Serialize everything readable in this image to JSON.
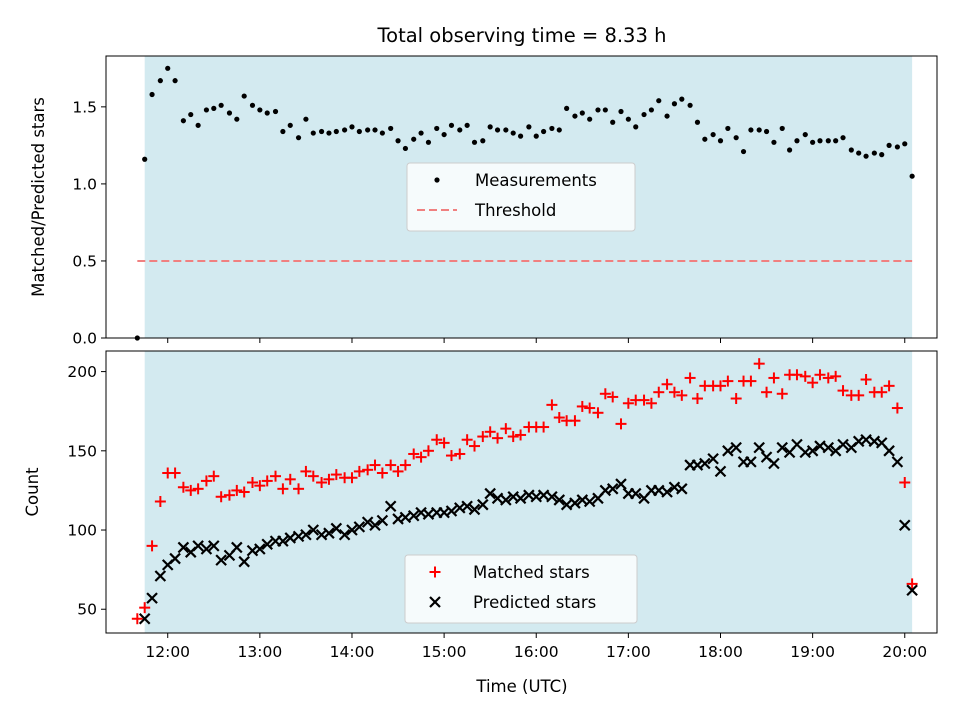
{
  "chart_data": {
    "title": "Total observing time = 8.33 h",
    "xlabel": "Time (UTC)",
    "xticks": [
      {
        "value": 12,
        "label": "12:00"
      },
      {
        "value": 13,
        "label": "13:00"
      },
      {
        "value": 14,
        "label": "14:00"
      },
      {
        "value": 15,
        "label": "15:00"
      },
      {
        "value": 16,
        "label": "16:00"
      },
      {
        "value": 17,
        "label": "17:00"
      },
      {
        "value": 18,
        "label": "18:00"
      },
      {
        "value": 19,
        "label": "19:00"
      },
      {
        "value": 20,
        "label": "20:00"
      }
    ],
    "xlim": [
      11.33,
      20.35
    ],
    "shaded_span": {
      "x": [
        11.75,
        20.08
      ],
      "color": "#d3eaf0"
    },
    "panels": [
      {
        "type": "scatter",
        "ylabel": "Matched/Predicted stars",
        "ylim": [
          0,
          1.83
        ],
        "yticks": [
          {
            "value": 0,
            "label": "0.0"
          },
          {
            "value": 0.5,
            "label": "0.5"
          },
          {
            "value": 1.0,
            "label": "1.0"
          },
          {
            "value": 1.5,
            "label": "1.5"
          }
        ],
        "threshold": {
          "name": "Threshold",
          "value": 0.5,
          "x": [
            11.67,
            20.08
          ],
          "color": "#f08080"
        },
        "series": [
          {
            "name": "Measurements",
            "marker": "dot",
            "color": "#000000",
            "x": [
              11.67,
              11.75,
              11.83,
              11.92,
              12.0,
              12.08,
              12.17,
              12.25,
              12.33,
              12.42,
              12.5,
              12.58,
              12.67,
              12.75,
              12.83,
              12.92,
              13.0,
              13.08,
              13.17,
              13.25,
              13.33,
              13.42,
              13.5,
              13.58,
              13.67,
              13.75,
              13.83,
              13.92,
              14.0,
              14.08,
              14.17,
              14.25,
              14.33,
              14.42,
              14.5,
              14.58,
              14.67,
              14.75,
              14.83,
              14.92,
              15.0,
              15.08,
              15.17,
              15.25,
              15.33,
              15.42,
              15.5,
              15.58,
              15.67,
              15.75,
              15.83,
              15.92,
              16.0,
              16.08,
              16.17,
              16.25,
              16.33,
              16.42,
              16.5,
              16.58,
              16.67,
              16.75,
              16.83,
              16.92,
              17.0,
              17.08,
              17.17,
              17.25,
              17.33,
              17.42,
              17.5,
              17.58,
              17.67,
              17.75,
              17.83,
              17.92,
              18.0,
              18.08,
              18.17,
              18.25,
              18.33,
              18.42,
              18.5,
              18.58,
              18.67,
              18.75,
              18.83,
              18.92,
              19.0,
              19.08,
              19.17,
              19.25,
              19.33,
              19.42,
              19.5,
              19.58,
              19.67,
              19.75,
              19.83,
              19.92,
              20.0,
              20.08
            ],
            "y": [
              0.0,
              1.16,
              1.58,
              1.67,
              1.75,
              1.67,
              1.41,
              1.45,
              1.38,
              1.48,
              1.49,
              1.51,
              1.46,
              1.42,
              1.57,
              1.51,
              1.48,
              1.46,
              1.47,
              1.34,
              1.38,
              1.3,
              1.42,
              1.33,
              1.34,
              1.33,
              1.34,
              1.35,
              1.37,
              1.34,
              1.35,
              1.35,
              1.33,
              1.36,
              1.28,
              1.23,
              1.29,
              1.33,
              1.27,
              1.36,
              1.32,
              1.38,
              1.35,
              1.38,
              1.27,
              1.28,
              1.37,
              1.35,
              1.35,
              1.33,
              1.31,
              1.37,
              1.31,
              1.34,
              1.36,
              1.35,
              1.49,
              1.44,
              1.46,
              1.42,
              1.48,
              1.48,
              1.4,
              1.47,
              1.42,
              1.37,
              1.45,
              1.48,
              1.54,
              1.44,
              1.52,
              1.55,
              1.51,
              1.4,
              1.29,
              1.32,
              1.28,
              1.36,
              1.3,
              1.21,
              1.35,
              1.35,
              1.34,
              1.27,
              1.36,
              1.22,
              1.28,
              1.32,
              1.27,
              1.28,
              1.28,
              1.28,
              1.3,
              1.22,
              1.2,
              1.18,
              1.2,
              1.19,
              1.25,
              1.24,
              1.26,
              1.05
            ]
          }
        ],
        "legend": {
          "placement": "center",
          "entries": [
            "Measurements",
            "Threshold"
          ]
        }
      },
      {
        "type": "scatter",
        "ylabel": "Count",
        "ylim": [
          35,
          213
        ],
        "yticks": [
          {
            "value": 50,
            "label": "50"
          },
          {
            "value": 100,
            "label": "100"
          },
          {
            "value": 150,
            "label": "150"
          },
          {
            "value": 200,
            "label": "200"
          }
        ],
        "series": [
          {
            "name": "Matched stars",
            "marker": "plus",
            "color": "#ff0000",
            "x": [
              11.67,
              11.75,
              11.83,
              11.92,
              12.0,
              12.08,
              12.17,
              12.25,
              12.33,
              12.42,
              12.5,
              12.58,
              12.67,
              12.75,
              12.83,
              12.92,
              13.0,
              13.08,
              13.17,
              13.25,
              13.33,
              13.42,
              13.5,
              13.58,
              13.67,
              13.75,
              13.83,
              13.92,
              14.0,
              14.08,
              14.17,
              14.25,
              14.33,
              14.42,
              14.5,
              14.58,
              14.67,
              14.75,
              14.83,
              14.92,
              15.0,
              15.08,
              15.17,
              15.25,
              15.33,
              15.42,
              15.5,
              15.58,
              15.67,
              15.75,
              15.83,
              15.92,
              16.0,
              16.08,
              16.17,
              16.25,
              16.33,
              16.42,
              16.5,
              16.58,
              16.67,
              16.75,
              16.83,
              16.92,
              17.0,
              17.08,
              17.17,
              17.25,
              17.33,
              17.42,
              17.5,
              17.58,
              17.67,
              17.75,
              17.83,
              17.92,
              18.0,
              18.08,
              18.17,
              18.25,
              18.33,
              18.42,
              18.5,
              18.58,
              18.67,
              18.75,
              18.83,
              18.92,
              19.0,
              19.08,
              19.17,
              19.25,
              19.33,
              19.42,
              19.5,
              19.58,
              19.67,
              19.75,
              19.83,
              19.92,
              20.0,
              20.08
            ],
            "y": [
              44,
              51,
              90,
              118,
              136,
              136,
              127,
              125,
              126,
              131,
              134,
              121,
              122,
              125,
              124,
              130,
              128,
              131,
              134,
              126,
              132,
              126,
              137,
              134,
              130,
              132,
              135,
              133,
              133,
              137,
              138,
              141,
              136,
              141,
              137,
              141,
              148,
              146,
              150,
              157,
              155,
              147,
              148,
              157,
              153,
              159,
              162,
              158,
              164,
              159,
              160,
              165,
              165,
              165,
              179,
              171,
              169,
              169,
              178,
              177,
              174,
              186,
              184,
              167,
              180,
              182,
              182,
              180,
              187,
              192,
              187,
              185,
              196,
              183,
              191,
              191,
              191,
              194,
              183,
              194,
              194,
              205,
              187,
              196,
              186,
              198,
              198,
              197,
              193,
              198,
              196,
              197,
              188,
              185,
              185,
              195,
              187,
              187,
              191,
              177,
              130,
              66
            ]
          },
          {
            "name": "Predicted stars",
            "marker": "cross",
            "color": "#000000",
            "x": [
              11.75,
              11.83,
              11.92,
              12.0,
              12.08,
              12.17,
              12.25,
              12.33,
              12.42,
              12.5,
              12.58,
              12.67,
              12.75,
              12.83,
              12.92,
              13.0,
              13.08,
              13.17,
              13.25,
              13.33,
              13.42,
              13.5,
              13.58,
              13.67,
              13.75,
              13.83,
              13.92,
              14.0,
              14.08,
              14.17,
              14.25,
              14.33,
              14.42,
              14.5,
              14.58,
              14.67,
              14.75,
              14.83,
              14.92,
              15.0,
              15.08,
              15.17,
              15.25,
              15.33,
              15.42,
              15.5,
              15.58,
              15.67,
              15.75,
              15.83,
              15.92,
              16.0,
              16.08,
              16.17,
              16.25,
              16.33,
              16.42,
              16.5,
              16.58,
              16.67,
              16.75,
              16.83,
              16.92,
              17.0,
              17.08,
              17.17,
              17.25,
              17.33,
              17.42,
              17.5,
              17.58,
              17.67,
              17.75,
              17.83,
              17.92,
              18.0,
              18.08,
              18.17,
              18.25,
              18.33,
              18.42,
              18.5,
              18.58,
              18.67,
              18.75,
              18.83,
              18.92,
              19.0,
              19.08,
              19.17,
              19.25,
              19.33,
              19.42,
              19.5,
              19.58,
              19.67,
              19.75,
              19.83,
              19.92,
              20.0,
              20.08
            ],
            "y": [
              44,
              57,
              71,
              78,
              82,
              89,
              86,
              90,
              88,
              90,
              81,
              84,
              89,
              80,
              87,
              88,
              91,
              93,
              93,
              95,
              96,
              97,
              100,
              97,
              98,
              101,
              97,
              100,
              102,
              105,
              103,
              106,
              115,
              107,
              108,
              109,
              111,
              110,
              111,
              111,
              112,
              114,
              115,
              113,
              116,
              123,
              120,
              119,
              121,
              120,
              122,
              121,
              122,
              121,
              119,
              116,
              117,
              119,
              118,
              120,
              125,
              126,
              129,
              123,
              123,
              120,
              125,
              125,
              124,
              127,
              126,
              141,
              141,
              142,
              145,
              137,
              150,
              152,
              143,
              143,
              152,
              146,
              142,
              152,
              149,
              154,
              149,
              150,
              153,
              152,
              150,
              154,
              152,
              156,
              157,
              156,
              155,
              150,
              143,
              103,
              62
            ]
          }
        ],
        "legend": {
          "placement": "lower center",
          "entries": [
            "Matched stars",
            "Predicted stars"
          ]
        }
      }
    ]
  }
}
